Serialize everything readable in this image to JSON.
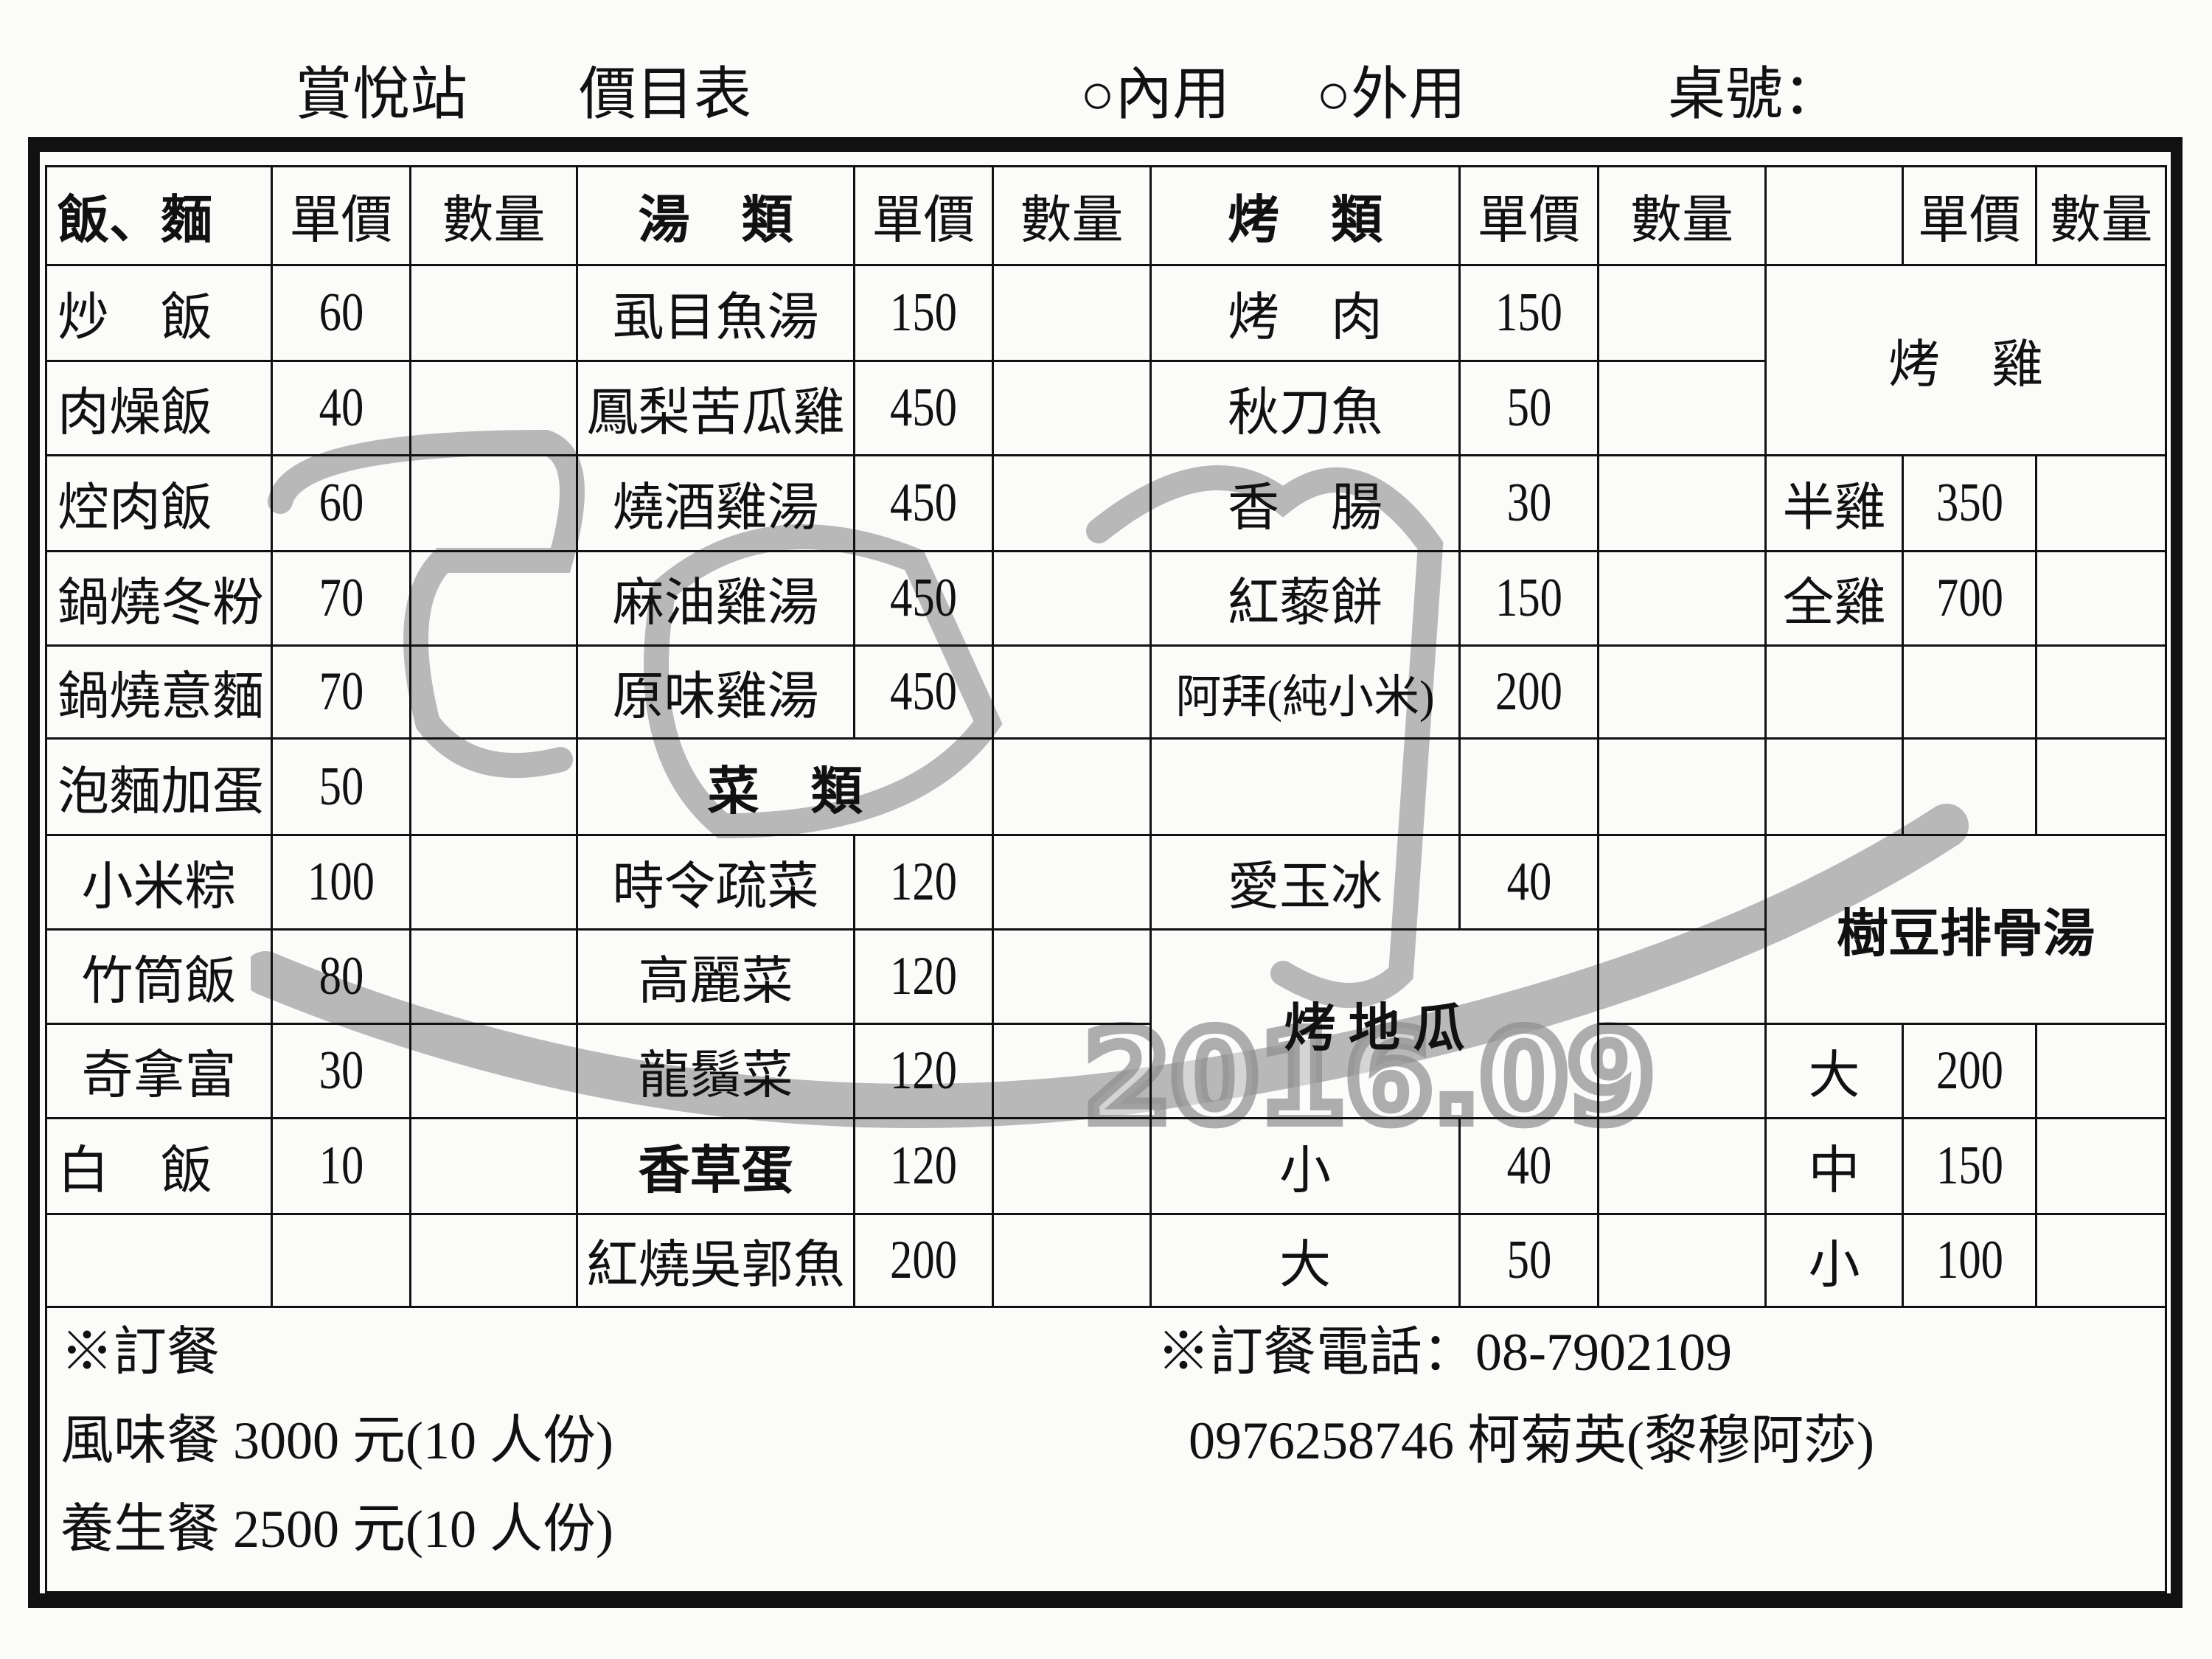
{
  "header": {
    "store": "賞悅站",
    "title": "價目表",
    "dine_in": "○內用",
    "takeout": "○外用",
    "table_no": "桌號："
  },
  "columns": {
    "rice_header": "飯、麵",
    "soup_header": "湯　類",
    "grill_header": "烤　類",
    "price": "單價",
    "qty": "數量"
  },
  "rice": [
    {
      "name": "炒　飯",
      "price": "60"
    },
    {
      "name": "肉燥飯",
      "price": "40"
    },
    {
      "name": "焢肉飯",
      "price": "60"
    },
    {
      "name": "鍋燒冬粉",
      "price": "70"
    },
    {
      "name": "鍋燒意麵",
      "price": "70"
    },
    {
      "name": "泡麵加蛋",
      "price": "50"
    },
    {
      "name": "小米粽",
      "price": "100"
    },
    {
      "name": "竹筒飯",
      "price": "80"
    },
    {
      "name": "奇拿富",
      "price": "30"
    },
    {
      "name": "白　飯",
      "price": "10"
    }
  ],
  "soups": [
    {
      "name": "虱目魚湯",
      "price": "150"
    },
    {
      "name": "鳳梨苦瓜雞",
      "price": "450"
    },
    {
      "name": "燒酒雞湯",
      "price": "450"
    },
    {
      "name": "麻油雞湯",
      "price": "450"
    },
    {
      "name": "原味雞湯",
      "price": "450"
    }
  ],
  "veg_header": "菜　類",
  "veg": [
    {
      "name": "時令疏菜",
      "price": "120"
    },
    {
      "name": "高麗菜",
      "price": "120"
    },
    {
      "name": "龍鬚菜",
      "price": "120"
    },
    {
      "name": "香草蛋",
      "price": "120"
    },
    {
      "name": "紅燒吳郭魚",
      "price": "200"
    }
  ],
  "grill": [
    {
      "name": "烤　肉",
      "price": "150"
    },
    {
      "name": "秋刀魚",
      "price": "50"
    },
    {
      "name": "香　腸",
      "price": "30"
    },
    {
      "name": "紅藜餅",
      "price": "150"
    },
    {
      "name": "阿拜(純小米)",
      "price": "200"
    }
  ],
  "aiyu": {
    "name": "愛玉冰",
    "price": "40"
  },
  "sweet_potato": {
    "label": "烤 地 瓜",
    "sizes": [
      {
        "size": "小",
        "price": "40"
      },
      {
        "size": "大",
        "price": "50"
      }
    ]
  },
  "chicken": {
    "label": "烤　雞",
    "items": [
      {
        "name": "半雞",
        "price": "350"
      },
      {
        "name": "全雞",
        "price": "700"
      }
    ]
  },
  "pork_soup": {
    "label": "樹豆排骨湯",
    "sizes": [
      {
        "size": "大",
        "price": "200"
      },
      {
        "size": "中",
        "price": "150"
      },
      {
        "size": "小",
        "price": "100"
      }
    ]
  },
  "footer": {
    "order_title": "※訂餐",
    "sets": [
      "風味餐 3000 元(10 人份)",
      "養生餐 2500 元(10 人份)"
    ],
    "phone_line": "※訂餐電話：08-7902109",
    "contact": "0976258746 柯菊英(黎穆阿莎)"
  },
  "watermark": {
    "text": "2016.09",
    "color": "#8c8c8c"
  }
}
